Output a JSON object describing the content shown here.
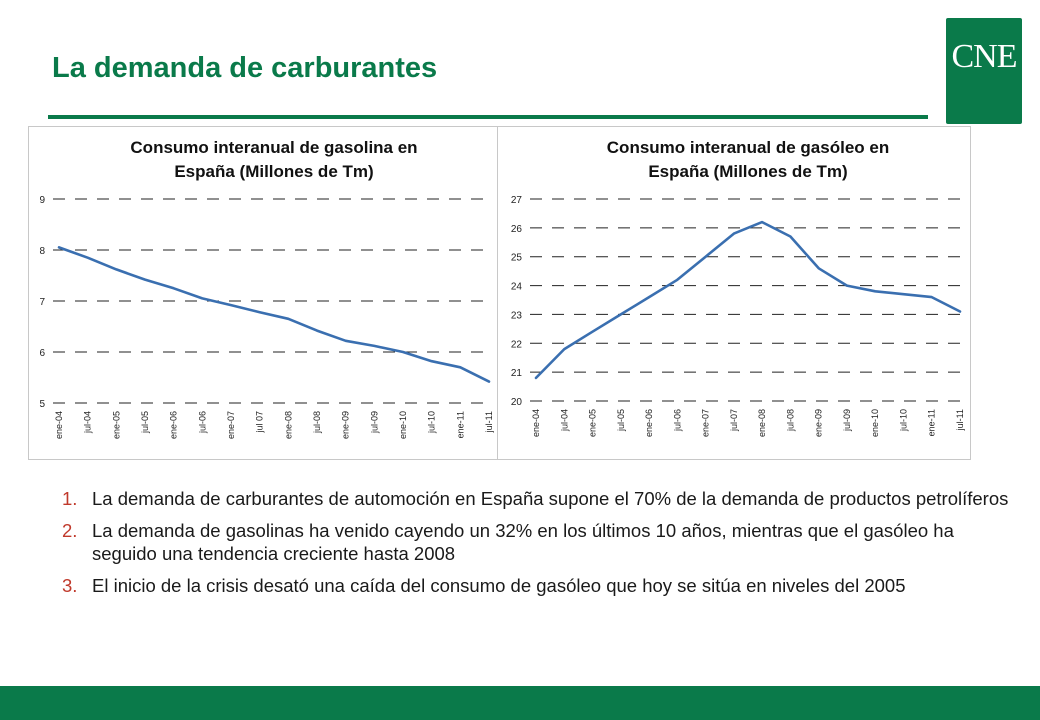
{
  "page": {
    "title": "La demanda de carburantes",
    "logo_text": "CNE",
    "brand_color": "#0a7a4a",
    "bullet_number_color": "#c0392b"
  },
  "bullets": [
    {
      "num": "1.",
      "text": "La demanda de carburantes de automoción en España supone el 70% de la demanda de productos petrolíferos"
    },
    {
      "num": "2.",
      "text": "La demanda de gasolinas ha venido cayendo un 32% en los últimos 10 años, mientras que el gasóleo ha seguido una tendencia creciente hasta 2008"
    },
    {
      "num": "3.",
      "text": "El inicio de la crisis desató una caída del consumo de gasóleo que hoy se sitúa en niveles del 2005"
    }
  ],
  "chart_data": [
    {
      "type": "line",
      "title_lines": [
        "Consumo interanual de gasolina en",
        "España (Millones de Tm)"
      ],
      "xlabel": "",
      "ylabel": "",
      "ylim": [
        5,
        9
      ],
      "yticks": [
        "5",
        "6",
        "7",
        "8",
        "9"
      ],
      "xticks": [
        "ene-04",
        "jul-04",
        "ene-05",
        "jul-05",
        "ene-06",
        "jul-06",
        "ene-07",
        "jul 07",
        "ene-08",
        "jul-08",
        "ene-09",
        "jul-09",
        "ene-10",
        "jul-10",
        "ene-11",
        "jul-11"
      ],
      "grid": true,
      "line_color": "#3a6fb0",
      "series": [
        {
          "x": [
            0,
            1,
            2,
            3,
            4,
            5,
            6,
            7,
            8,
            9,
            10,
            11,
            12,
            13,
            14,
            15
          ],
          "values": [
            8.05,
            7.85,
            7.62,
            7.42,
            7.25,
            7.05,
            6.92,
            6.78,
            6.65,
            6.42,
            6.22,
            6.12,
            6.0,
            5.82,
            5.7,
            5.42
          ]
        }
      ]
    },
    {
      "type": "line",
      "title_lines": [
        "Consumo  interanual de gasóleo en",
        "España (Millones de Tm)"
      ],
      "xlabel": "",
      "ylabel": "",
      "ylim": [
        20,
        27
      ],
      "yticks": [
        "20",
        "21",
        "22",
        "23",
        "24",
        "25",
        "26",
        "27"
      ],
      "xticks": [
        "ene-04",
        "jul-04",
        "ene-05",
        "jul-05",
        "ene-06",
        "jul-06",
        "ene-07",
        "jul-07",
        "ene-08",
        "jul-08",
        "ene-09",
        "jul-09",
        "ene-10",
        "jul-10",
        "ene-11",
        "jul-11"
      ],
      "grid": true,
      "line_color": "#3a6fb0",
      "series": [
        {
          "x": [
            0,
            1,
            2,
            3,
            4,
            5,
            6,
            7,
            8,
            9,
            10,
            11,
            12,
            13,
            14,
            15
          ],
          "values": [
            20.8,
            21.8,
            22.4,
            23.0,
            23.6,
            24.2,
            25.0,
            25.8,
            26.2,
            25.7,
            24.6,
            24.0,
            23.8,
            23.7,
            23.6,
            23.1
          ]
        }
      ]
    }
  ]
}
